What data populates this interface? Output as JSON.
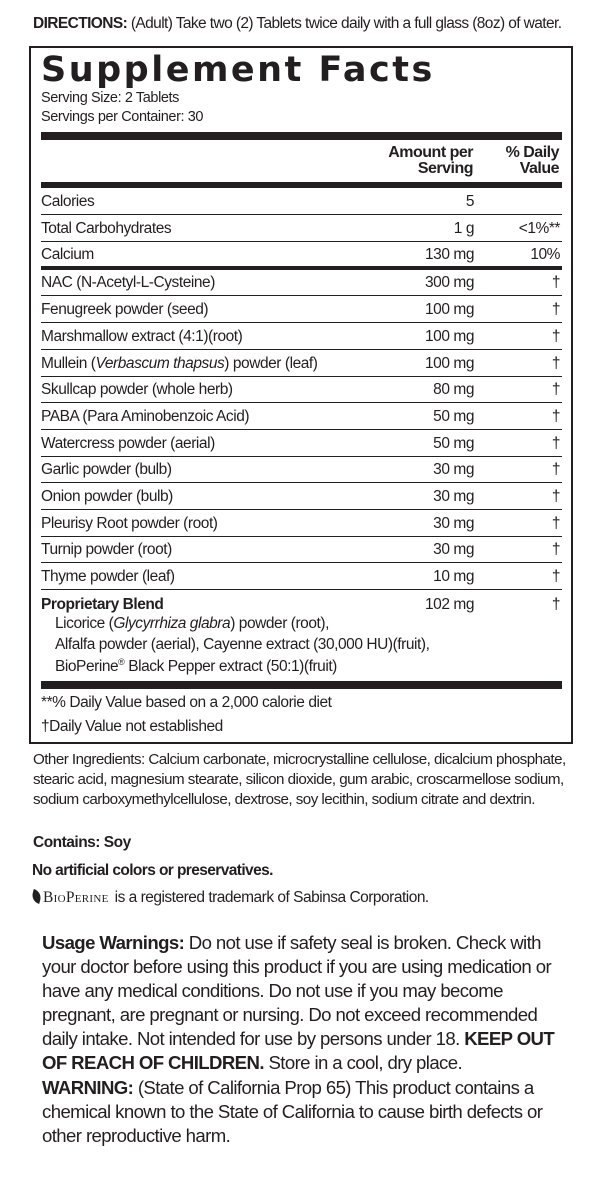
{
  "directions": {
    "label": "DIRECTIONS:",
    "text": " (Adult) Take two (2) Tablets twice daily with a full glass (8oz) of water."
  },
  "facts": {
    "title": "Supplement Facts",
    "serving_size": "Serving Size:  2 Tablets",
    "servings_per_container": "Servings per Container:  30",
    "header_amount_1": "Amount per",
    "header_amount_2": "Serving",
    "header_dv_1": "% Daily",
    "header_dv_2": "Value",
    "rows": [
      {
        "name": [
          {
            "t": "Calories"
          }
        ],
        "amount": "5",
        "dv": ""
      },
      {
        "name": [
          {
            "t": "Total Carbohydrates"
          }
        ],
        "amount": "1 g",
        "dv": "<1%**"
      },
      {
        "name": [
          {
            "t": "Calcium"
          }
        ],
        "amount": "130 mg",
        "dv": "10%"
      },
      {
        "name": [
          {
            "t": "NAC (N-Acetyl-L-Cysteine)"
          }
        ],
        "amount": "300 mg",
        "dv": "†"
      },
      {
        "name": [
          {
            "t": "Fenugreek powder (seed)"
          }
        ],
        "amount": "100 mg",
        "dv": "†"
      },
      {
        "name": [
          {
            "t": "Marshmallow extract (4:1)(root)"
          }
        ],
        "amount": "100 mg",
        "dv": "†"
      },
      {
        "name": [
          {
            "t": "Mullein ("
          },
          {
            "t": "Verbascum thapsus",
            "i": true
          },
          {
            "t": ") powder (leaf)"
          }
        ],
        "amount": "100 mg",
        "dv": "†"
      },
      {
        "name": [
          {
            "t": "Skullcap powder (whole herb)"
          }
        ],
        "amount": "80 mg",
        "dv": "†"
      },
      {
        "name": [
          {
            "t": "PABA (Para Aminobenzoic Acid)"
          }
        ],
        "amount": "50 mg",
        "dv": "†"
      },
      {
        "name": [
          {
            "t": "Watercress powder (aerial)"
          }
        ],
        "amount": "50 mg",
        "dv": "†"
      },
      {
        "name": [
          {
            "t": "Garlic powder (bulb)"
          }
        ],
        "amount": "30 mg",
        "dv": "†"
      },
      {
        "name": [
          {
            "t": "Onion powder (bulb)"
          }
        ],
        "amount": "30 mg",
        "dv": "†"
      },
      {
        "name": [
          {
            "t": "Pleurisy Root powder (root)"
          }
        ],
        "amount": "30 mg",
        "dv": "†"
      },
      {
        "name": [
          {
            "t": "Turnip powder (root)"
          }
        ],
        "amount": "30 mg",
        "dv": "†"
      },
      {
        "name": [
          {
            "t": "Thyme powder (leaf)"
          }
        ],
        "amount": "10 mg",
        "dv": "†"
      }
    ],
    "blend": {
      "name": "Proprietary Blend",
      "amount": "102 mg",
      "dv": "†",
      "line1_pre": "Licorice (",
      "line1_italic": "Glycyrrhiza glabra",
      "line1_post": ") powder (root),",
      "line2": "Alfalfa powder (aerial), Cayenne extract (30,000 HU)(fruit),",
      "line3_pre": "BioPerine",
      "line3_reg": "®",
      "line3_post": " Black Pepper extract (50:1)(fruit)"
    },
    "footnote_1": "**% Daily Value based on a 2,000 calorie diet",
    "footnote_2": "†Daily Value not established"
  },
  "other_ingredients": "Other Ingredients:  Calcium carbonate, microcrystalline cellulose, dicalcium phosphate, stearic acid, magnesium stearate, silicon dioxide, gum arabic, croscarmellose sodium, sodium carboxymethylcellulose, dextrose, soy lecithin, sodium citrate and dextrin.",
  "contains": "Contains: Soy",
  "no_artificial": "No artificial colors or preservatives.",
  "bioperine": {
    "logo": "BioPerine",
    "text": "is a registered trademark of Sabinsa Corporation."
  },
  "warnings": {
    "label": "Usage Warnings:",
    "text": " Do not use if safety seal is broken. Check with your doctor before using this product if you are using medication or have any medical conditions. Do not use if you may become pregnant, are pregnant or nursing. Do not exceed recommended daily intake. Not intended for use by persons under 18. ",
    "keep_out": "KEEP OUT OF REACH OF CHILDREN.",
    "store": " Store in a cool, dry place.",
    "prop65_label": "WARNING:",
    "prop65_text": " (State of California Prop 65) This product contains a chemical known to the State of California to cause birth defects or other reproductive harm."
  }
}
